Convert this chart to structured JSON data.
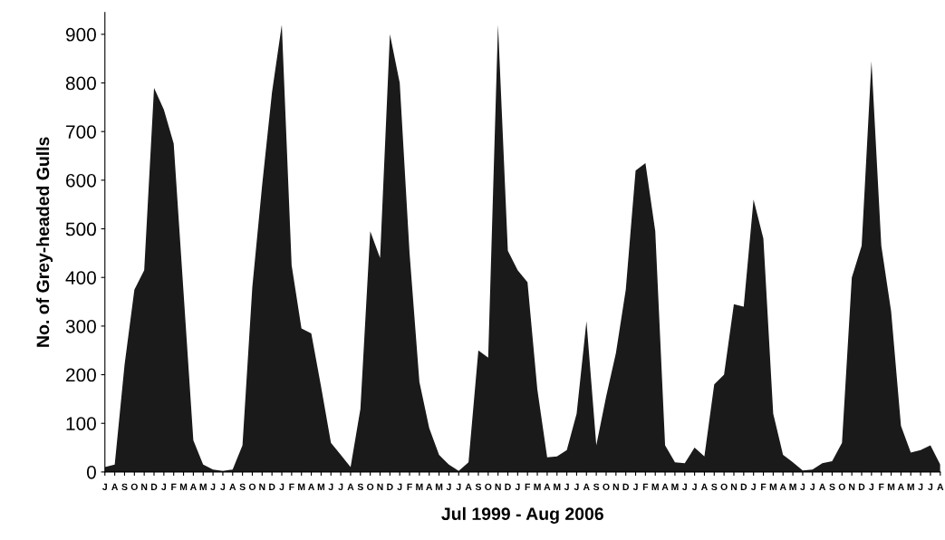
{
  "chart_data": {
    "type": "area",
    "xlabel": "Jul 1999 - Aug 2006",
    "ylabel": "No. of Grey-headed Gulls",
    "categories": [
      "J",
      "A",
      "S",
      "O",
      "N",
      "D",
      "J",
      "F",
      "M",
      "A",
      "M",
      "J",
      "J",
      "A",
      "S",
      "O",
      "N",
      "D",
      "J",
      "F",
      "M",
      "A",
      "M",
      "J",
      "J",
      "A",
      "S",
      "O",
      "N",
      "D",
      "J",
      "F",
      "M",
      "A",
      "M",
      "J",
      "J",
      "A",
      "S",
      "O",
      "N",
      "D",
      "J",
      "F",
      "M",
      "A",
      "M",
      "J",
      "J",
      "A",
      "S",
      "O",
      "N",
      "D",
      "J",
      "F",
      "M",
      "A",
      "M",
      "J",
      "J",
      "A",
      "S",
      "O",
      "N",
      "D",
      "J",
      "F",
      "M",
      "A",
      "M",
      "J",
      "J",
      "A",
      "S",
      "O",
      "N",
      "D",
      "J",
      "F",
      "M",
      "A",
      "M",
      "J",
      "J",
      "A"
    ],
    "values": [
      10,
      15,
      220,
      375,
      415,
      790,
      745,
      675,
      370,
      65,
      15,
      5,
      2,
      5,
      55,
      380,
      590,
      780,
      920,
      425,
      295,
      285,
      175,
      60,
      35,
      10,
      130,
      495,
      440,
      900,
      800,
      450,
      185,
      90,
      35,
      15,
      2,
      20,
      250,
      235,
      920,
      455,
      415,
      390,
      170,
      30,
      32,
      45,
      120,
      310,
      55,
      155,
      245,
      375,
      620,
      635,
      495,
      55,
      20,
      18,
      50,
      32,
      180,
      200,
      345,
      340,
      560,
      480,
      120,
      35,
      20,
      3,
      5,
      18,
      22,
      60,
      400,
      465,
      845,
      465,
      330,
      95,
      40,
      45,
      55,
      15
    ],
    "color": "#1a1a1a",
    "ylim": [
      0,
      945
    ],
    "yticks": [
      0,
      100,
      200,
      300,
      400,
      500,
      600,
      700,
      800,
      900
    ],
    "grid": false,
    "legend": false
  }
}
